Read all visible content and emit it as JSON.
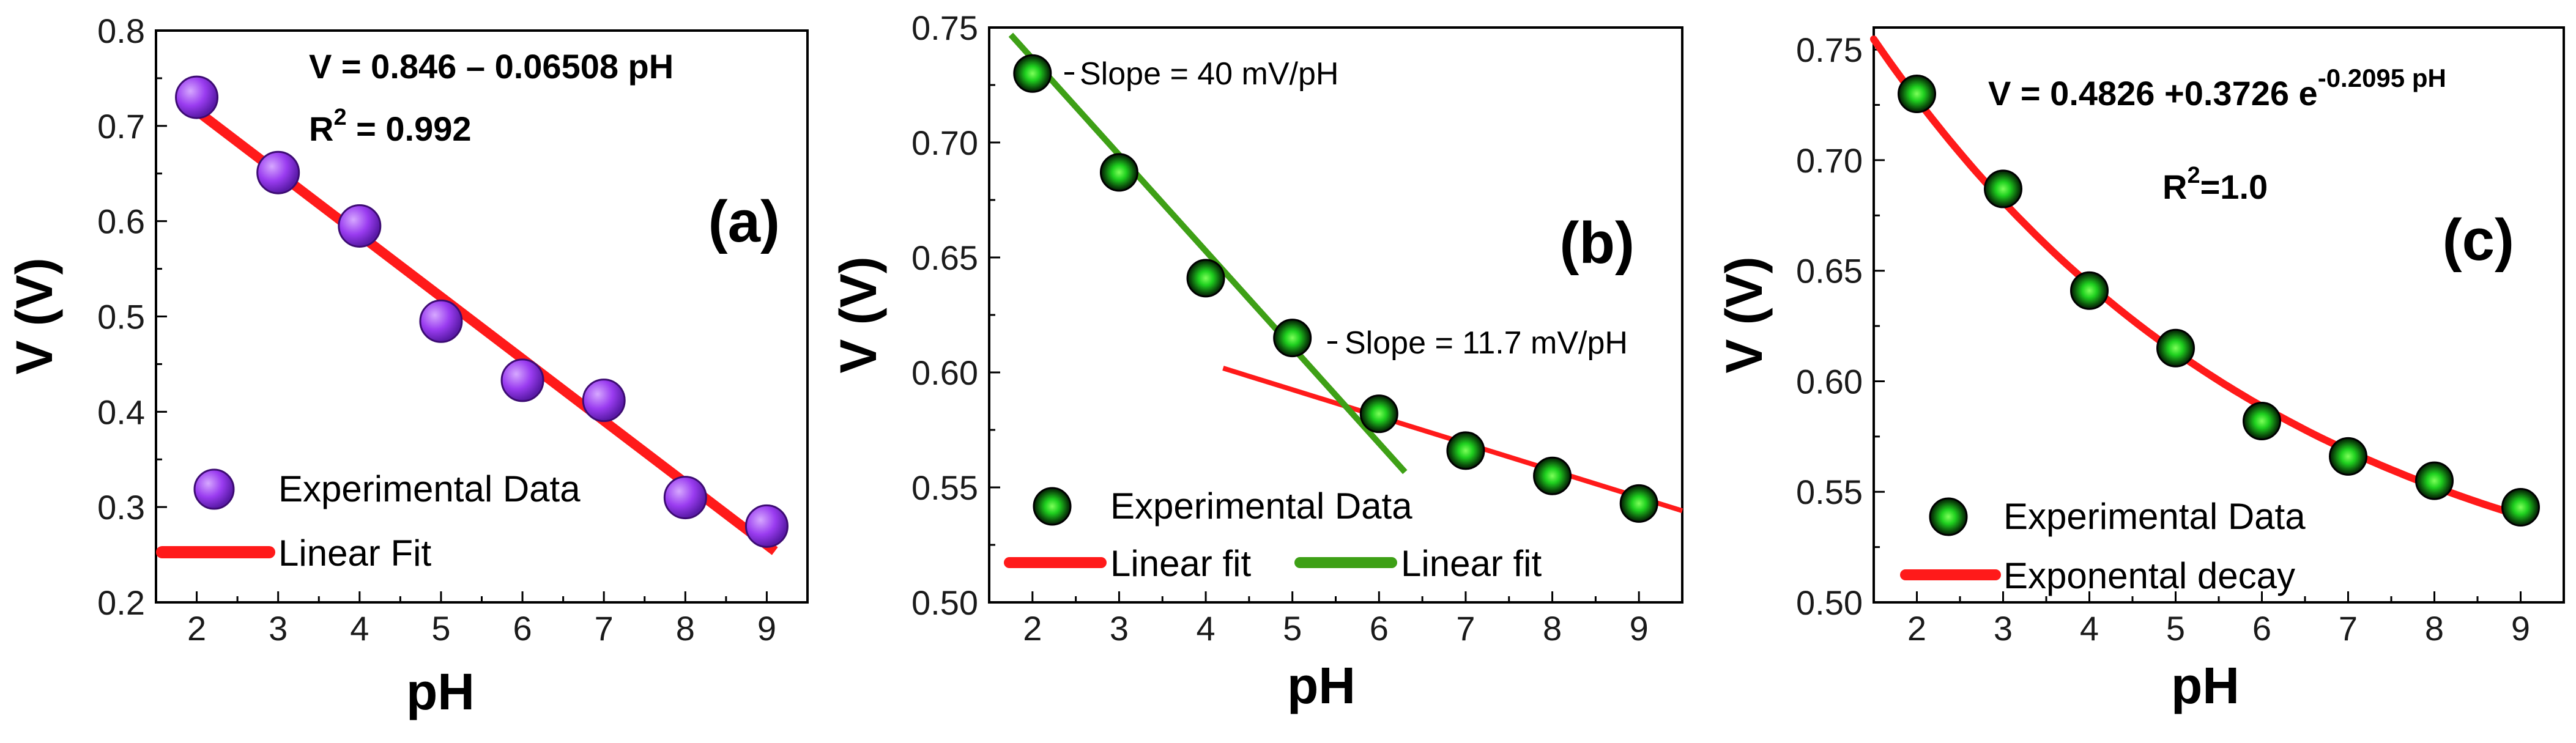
{
  "colors": {
    "fit_red": "#ff1a1a",
    "fit_green": "#3ea016",
    "purple": "#9a3cf0",
    "green_ball": "#1fd11f"
  },
  "chart_data": [
    {
      "type": "scatter",
      "panel_label": "(a)",
      "xlabel": "pH",
      "ylabel": "V (V)",
      "xlim": [
        1.5,
        9.5
      ],
      "ylim": [
        0.2,
        0.8
      ],
      "xticks": [
        2,
        3,
        4,
        5,
        6,
        7,
        8,
        9
      ],
      "yticks": [
        0.2,
        0.3,
        0.4,
        0.5,
        0.6,
        0.7,
        0.8
      ],
      "ytick_decimals": 1,
      "series": [
        {
          "name": "Experimental Data",
          "x": [
            2,
            3,
            4,
            5,
            6,
            7,
            8,
            9
          ],
          "y": [
            0.73,
            0.651,
            0.595,
            0.495,
            0.433,
            0.412,
            0.31,
            0.28
          ]
        }
      ],
      "fit": {
        "kind": "linear",
        "name": "Linear Fit",
        "a": 0.846,
        "b": -0.06508,
        "x_range": [
          1.9,
          9.1
        ]
      },
      "equation": "V = 0.846 – 0.06508 pH",
      "r2_base": "R",
      "r2_sup": "2",
      "r2_val": " = 0.992",
      "legend": [
        "Experimental Data",
        "Linear Fit"
      ]
    },
    {
      "type": "scatter",
      "panel_label": "(b)",
      "xlabel": "pH",
      "ylabel": "V (V)",
      "xlim": [
        1.5,
        9.5
      ],
      "ylim": [
        0.5,
        0.75
      ],
      "xticks": [
        2,
        3,
        4,
        5,
        6,
        7,
        8,
        9
      ],
      "yticks": [
        0.5,
        0.55,
        0.6,
        0.65,
        0.7,
        0.75
      ],
      "ytick_decimals": 2,
      "series": [
        {
          "name": "Experimental Data",
          "x": [
            2,
            3,
            4,
            5,
            6,
            7,
            8,
            9
          ],
          "y": [
            0.73,
            0.687,
            0.641,
            0.615,
            0.582,
            0.566,
            0.555,
            0.543
          ]
        }
      ],
      "fits": [
        {
          "kind": "linear",
          "name": "Linear fit",
          "color": "red",
          "a": 0.651,
          "b": -0.0117,
          "x_range": [
            4.2,
            9.5
          ]
        },
        {
          "kind": "linear",
          "name": "Linear fit",
          "color": "green",
          "a": 0.82,
          "b": -0.0418,
          "x_range": [
            1.75,
            6.3
          ]
        }
      ],
      "annotations": [
        "Slope = 40 mV/pH",
        "Slope = 11.7 mV/pH"
      ],
      "legend": [
        "Experimental Data",
        "Linear fit",
        "Linear fit"
      ]
    },
    {
      "type": "scatter",
      "panel_label": "(c)",
      "xlabel": "pH",
      "ylabel": "V (V)",
      "xlim": [
        1.5,
        9.5
      ],
      "ylim": [
        0.5,
        0.76
      ],
      "xticks": [
        2,
        3,
        4,
        5,
        6,
        7,
        8,
        9
      ],
      "yticks": [
        0.5,
        0.55,
        0.6,
        0.65,
        0.7,
        0.75
      ],
      "ytick_decimals": 2,
      "series": [
        {
          "name": "Experimental Data",
          "x": [
            2,
            3,
            4,
            5,
            6,
            7,
            8,
            9
          ],
          "y": [
            0.73,
            0.687,
            0.641,
            0.615,
            0.582,
            0.566,
            0.555,
            0.543
          ]
        }
      ],
      "fit": {
        "kind": "exponential",
        "name": "Exponental decay",
        "y0": 0.4826,
        "A": 0.3726,
        "k": -0.2095,
        "x_range": [
          1.5,
          9.0
        ]
      },
      "equation_main": "V = 0.4826 +0.3726 e",
      "equation_sup": "-0.2095 pH",
      "r2_base": "R",
      "r2_sup": "2",
      "r2_val": "=1.0",
      "legend": [
        "Experimental Data",
        "Exponental decay"
      ]
    }
  ]
}
